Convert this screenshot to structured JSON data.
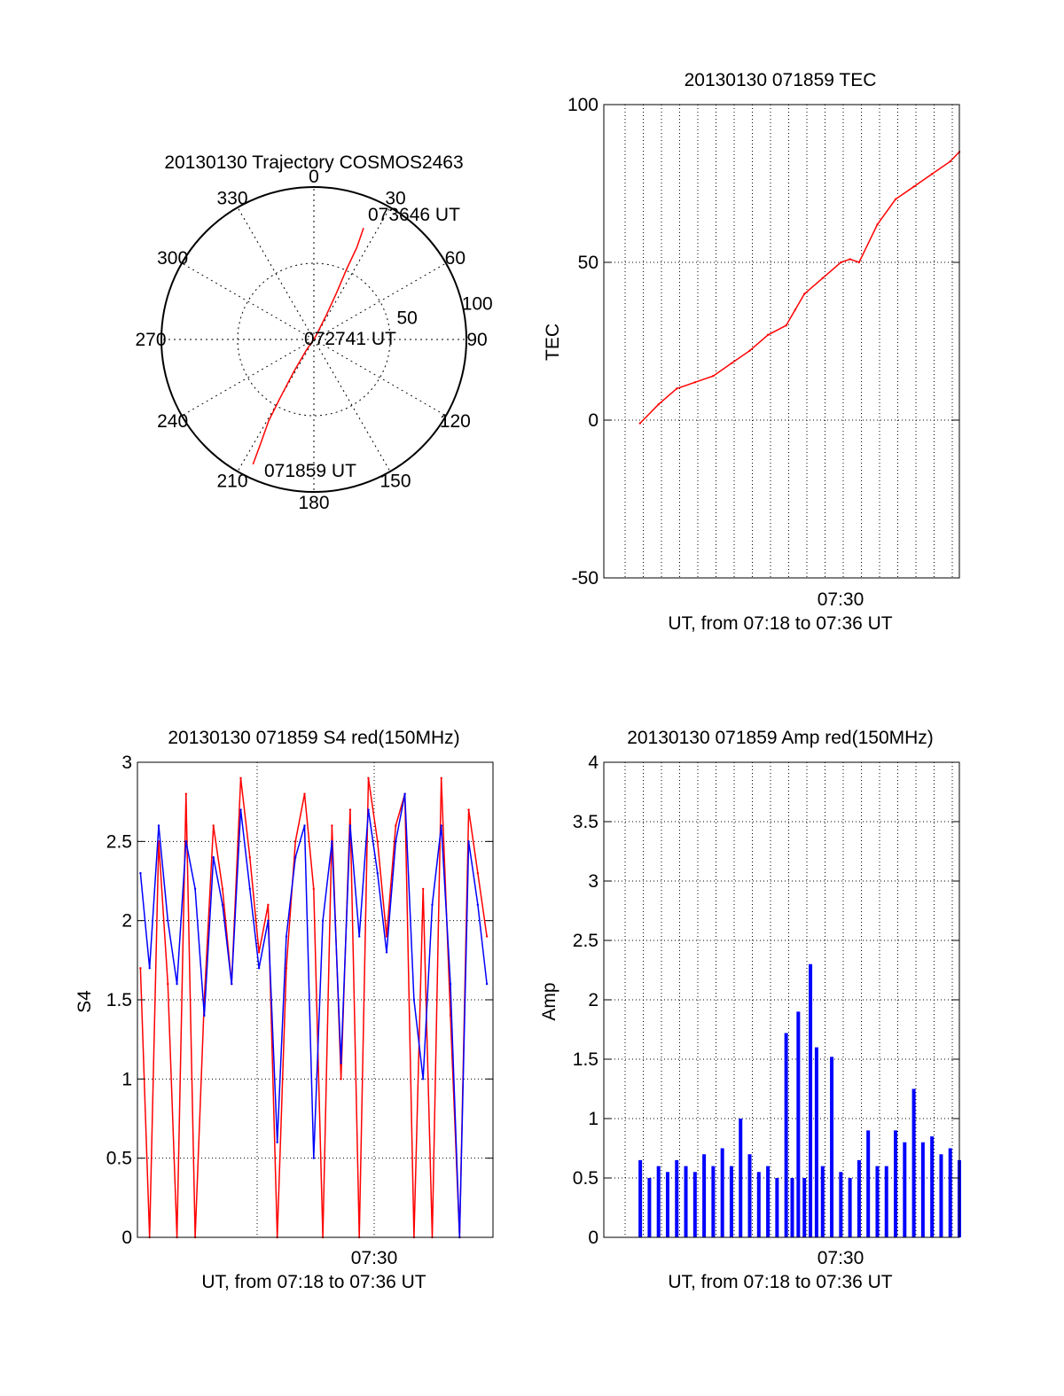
{
  "colors": {
    "primary": "#ff0000",
    "secondary": "#0000ff",
    "axis": "#000000",
    "grid": "#000000"
  },
  "chart_data": [
    {
      "type": "polar",
      "title": "20130130 Trajectory COSMOS2463",
      "azimuth_labels": [
        "0",
        "30",
        "60",
        "90",
        "120",
        "150",
        "180",
        "210",
        "240",
        "270",
        "300",
        "330"
      ],
      "radial_labels": [
        "50",
        "100"
      ],
      "trajectory": {
        "points": [
          {
            "az": 206,
            "el": 8
          },
          {
            "az": 207,
            "el": 20
          },
          {
            "az": 209,
            "el": 35
          },
          {
            "az": 210,
            "el": 50
          },
          {
            "az": 212,
            "el": 68
          },
          {
            "az": 215,
            "el": 82
          },
          {
            "az": 30,
            "el": 88
          },
          {
            "az": 27,
            "el": 74
          },
          {
            "az": 26,
            "el": 60
          },
          {
            "az": 25,
            "el": 45
          },
          {
            "az": 25,
            "el": 30
          },
          {
            "az": 24,
            "el": 18
          }
        ],
        "labels": [
          "071859 UT",
          "072741 UT",
          "073646 UT"
        ]
      }
    },
    {
      "type": "line",
      "title": "20130130 071859 TEC",
      "ylabel": "TEC",
      "xlabel": "UT, from 07:18 to 07:36 UT",
      "xlim": [
        "07:17:00",
        "07:36:30"
      ],
      "ylim": [
        -50,
        100
      ],
      "yticks": [
        "-50",
        "0",
        "50",
        "100"
      ],
      "xtick_label": "07:30",
      "grid": true,
      "series": [
        {
          "x": [
            "07:18:59",
            "07:20:00",
            "07:21:00",
            "07:22:00",
            "07:23:00",
            "07:24:00",
            "07:25:00",
            "07:26:00",
            "07:27:00",
            "07:27:30",
            "07:28:00",
            "07:29:00",
            "07:30:00",
            "07:30:30",
            "07:31:00",
            "07:32:00",
            "07:33:00",
            "07:34:00",
            "07:35:00",
            "07:36:00",
            "07:36:30"
          ],
          "y": [
            -1,
            5,
            10,
            12,
            14,
            18,
            22,
            27,
            30,
            35,
            40,
            45,
            50,
            51,
            50,
            62,
            70,
            74,
            78,
            82,
            85
          ]
        }
      ]
    },
    {
      "type": "line",
      "title": "20130130 071859 S4 red(150MHz)",
      "ylabel": "S4",
      "xlabel": "UT, from 07:18 to 07:36 UT",
      "xlim": [
        "07:18:00",
        "07:37:30"
      ],
      "ylim": [
        0,
        3
      ],
      "yticks": [
        "0",
        "0.5",
        "1",
        "1.5",
        "2",
        "2.5",
        "3"
      ],
      "xtick_label": "07:30",
      "grid": true,
      "series": [
        {
          "x": [
            "07:18:10",
            "07:18:40",
            "07:19:10",
            "07:19:40",
            "07:20:10",
            "07:20:40",
            "07:21:10",
            "07:21:40",
            "07:22:10",
            "07:22:40",
            "07:23:10",
            "07:23:40",
            "07:24:10",
            "07:24:40",
            "07:25:10",
            "07:25:40",
            "07:26:10",
            "07:26:40",
            "07:27:10",
            "07:27:40",
            "07:28:10",
            "07:28:40",
            "07:29:10",
            "07:29:40",
            "07:30:10",
            "07:30:40",
            "07:31:10",
            "07:31:40",
            "07:32:10",
            "07:32:40",
            "07:33:10",
            "07:33:40",
            "07:34:10",
            "07:34:40",
            "07:35:10",
            "07:35:40",
            "07:36:10",
            "07:36:40",
            "07:37:10"
          ],
          "y": [
            1.7,
            0,
            2.5,
            1.6,
            0,
            2.8,
            0,
            1.5,
            2.6,
            2.2,
            1.6,
            2.9,
            2.4,
            1.8,
            2.1,
            0,
            1.7,
            2.5,
            2.8,
            2.2,
            0,
            2.6,
            1.0,
            2.7,
            0,
            2.9,
            2.5,
            1.9,
            2.6,
            2.8,
            0,
            2.2,
            0,
            2.9,
            1.4,
            0,
            2.7,
            2.3,
            1.9
          ]
        },
        {
          "x": [
            "07:18:10",
            "07:18:40",
            "07:19:10",
            "07:19:40",
            "07:20:10",
            "07:20:40",
            "07:21:10",
            "07:21:40",
            "07:22:10",
            "07:22:40",
            "07:23:10",
            "07:23:40",
            "07:24:10",
            "07:24:40",
            "07:25:10",
            "07:25:40",
            "07:26:10",
            "07:26:40",
            "07:27:10",
            "07:27:40",
            "07:28:10",
            "07:28:40",
            "07:29:10",
            "07:29:40",
            "07:30:10",
            "07:30:40",
            "07:31:10",
            "07:31:40",
            "07:32:10",
            "07:32:40",
            "07:33:10",
            "07:33:40",
            "07:34:10",
            "07:34:40",
            "07:35:10",
            "07:35:40",
            "07:36:10",
            "07:36:40",
            "07:37:10"
          ],
          "y": [
            2.3,
            1.7,
            2.6,
            2.0,
            1.6,
            2.5,
            2.2,
            1.4,
            2.4,
            2.1,
            1.6,
            2.7,
            2.2,
            1.7,
            2.0,
            0.6,
            1.9,
            2.4,
            2.6,
            0.5,
            2.0,
            2.5,
            1.1,
            2.6,
            1.9,
            2.7,
            2.3,
            1.8,
            2.5,
            2.8,
            1.5,
            1.0,
            2.1,
            2.6,
            1.6,
            0,
            2.5,
            2.1,
            1.6
          ]
        }
      ]
    },
    {
      "type": "bar",
      "title": "20130130 071859 Amp red(150MHz)",
      "ylabel": "Amp",
      "xlabel": "UT, from 07:18 to 07:36 UT",
      "xlim": [
        "07:17:00",
        "07:36:30"
      ],
      "ylim": [
        0,
        4
      ],
      "yticks": [
        "0",
        "0.5",
        "1",
        "1.5",
        "2",
        "2.5",
        "3",
        "3.5",
        "4"
      ],
      "xtick_label": "07:30",
      "grid": true,
      "series": [
        {
          "x": [
            "07:19:00",
            "07:19:30",
            "07:20:00",
            "07:20:30",
            "07:21:00",
            "07:21:30",
            "07:22:00",
            "07:22:30",
            "07:23:00",
            "07:23:30",
            "07:24:00",
            "07:24:30",
            "07:25:00",
            "07:25:30",
            "07:26:00",
            "07:26:30",
            "07:27:00",
            "07:27:20",
            "07:27:40",
            "07:28:00",
            "07:28:20",
            "07:28:40",
            "07:29:00",
            "07:29:30",
            "07:30:00",
            "07:30:30",
            "07:31:00",
            "07:31:30",
            "07:32:00",
            "07:32:30",
            "07:33:00",
            "07:33:30",
            "07:34:00",
            "07:34:30",
            "07:35:00",
            "07:35:30",
            "07:36:00",
            "07:36:30"
          ],
          "y": [
            0.65,
            0.5,
            0.6,
            0.55,
            0.65,
            0.6,
            0.55,
            0.7,
            0.6,
            0.75,
            0.6,
            1.0,
            0.7,
            0.55,
            0.6,
            0.5,
            1.72,
            0.5,
            1.9,
            0.5,
            2.3,
            1.6,
            0.6,
            1.52,
            0.55,
            0.5,
            0.65,
            0.9,
            0.6,
            0.6,
            0.9,
            0.8,
            1.25,
            0.8,
            0.85,
            0.7,
            0.75,
            0.65
          ]
        }
      ]
    }
  ]
}
